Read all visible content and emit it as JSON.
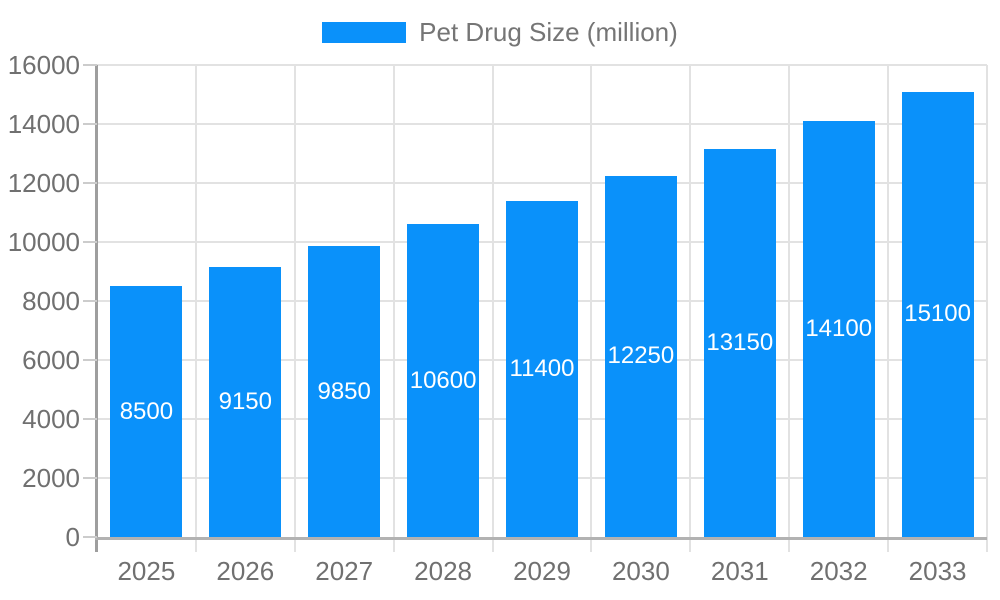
{
  "chart_data": {
    "type": "bar",
    "title": "",
    "categories": [
      "2025",
      "2026",
      "2027",
      "2028",
      "2029",
      "2030",
      "2031",
      "2032",
      "2033"
    ],
    "series": [
      {
        "name": "Pet Drug Size (million)",
        "values": [
          8500,
          9150,
          9850,
          10600,
          11400,
          12250,
          13150,
          14100,
          15100
        ]
      }
    ],
    "value_labels": [
      "8500",
      "9150",
      "9850",
      "10600",
      "11400",
      "12250",
      "13150",
      "14100",
      "15100"
    ],
    "xlabel": "",
    "ylabel": "",
    "ylim": [
      0,
      16000
    ],
    "ytick_step": 2000,
    "ytick_labels": [
      "0",
      "2000",
      "4000",
      "6000",
      "8000",
      "10000",
      "12000",
      "14000",
      "16000"
    ],
    "grid": true,
    "legend_position": "top-center",
    "colors": {
      "bar": "#0a91fa",
      "value_label": "#ffffff",
      "axis_label": "#707070",
      "legend_text": "#757575",
      "gridline": "#e2e2e2",
      "y_axis_line": "#9e9e9e",
      "x_axis_line": "#b2b2b2",
      "y_tick": "#cccccc",
      "background": "#ffffff"
    }
  }
}
